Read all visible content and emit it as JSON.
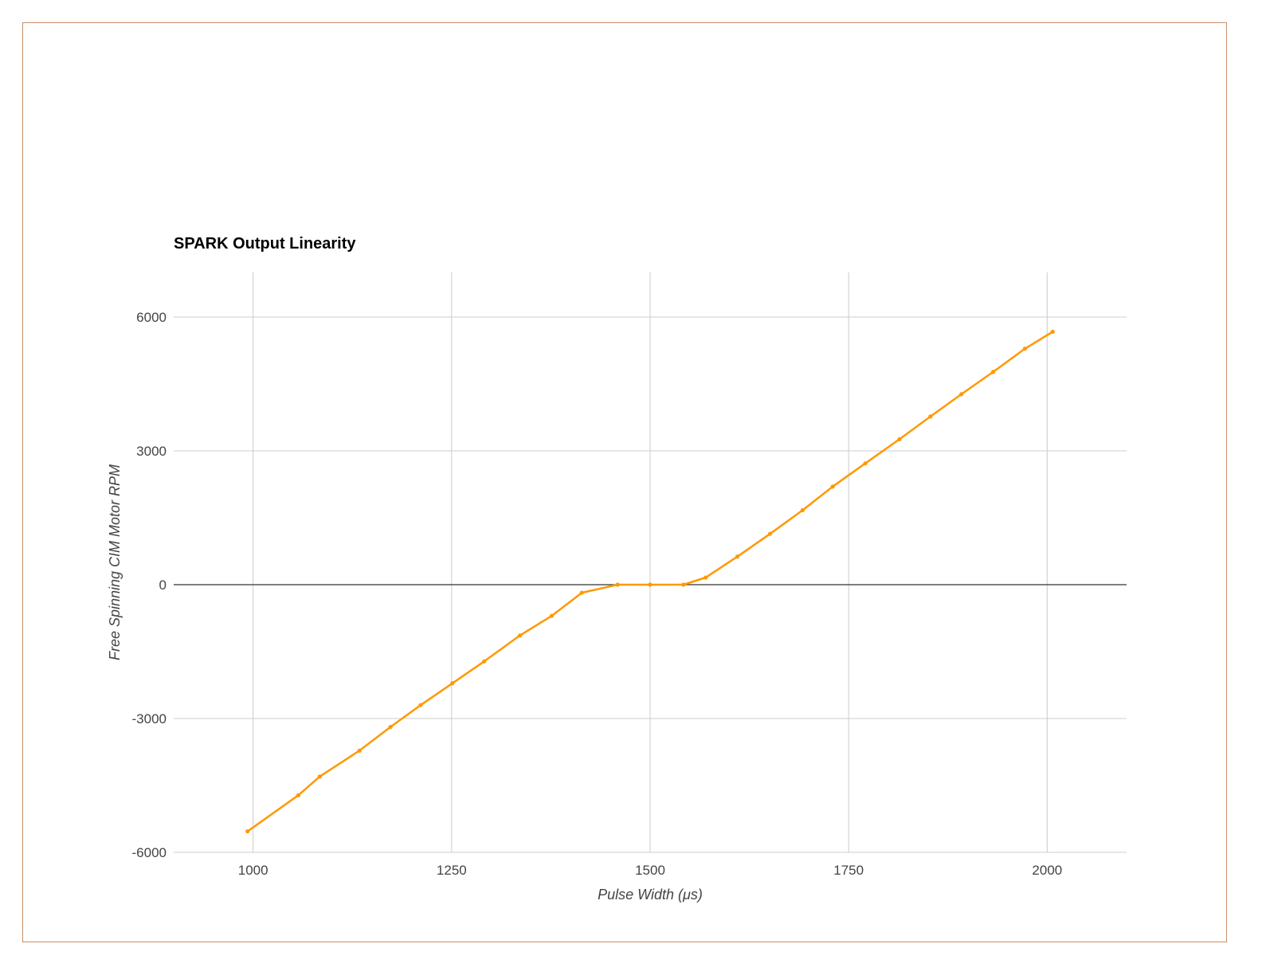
{
  "chart_data": {
    "type": "line",
    "title": "SPARK Output Linearity",
    "xlabel": "Pulse Width (μs)",
    "ylabel": "Free Spinning CIM Motor RPM",
    "xlim": [
      900,
      2100
    ],
    "ylim": [
      -6000,
      7000
    ],
    "xticks": [
      1000,
      1250,
      1500,
      1750,
      2000
    ],
    "yticks": [
      -6000,
      -3000,
      0,
      3000,
      6000
    ],
    "grid": true,
    "legend": "none",
    "series": [
      {
        "color": "#ff9900",
        "x": [
          993,
          1057,
          1084,
          1134,
          1173,
          1211,
          1251,
          1291,
          1336,
          1376,
          1414,
          1459,
          1500,
          1542,
          1570,
          1610,
          1651,
          1692,
          1730,
          1771,
          1814,
          1853,
          1892,
          1932,
          1972,
          2007
        ],
        "y": [
          -5530,
          -4720,
          -4300,
          -3720,
          -3190,
          -2700,
          -2210,
          -1720,
          -1140,
          -700,
          -180,
          0,
          0,
          0,
          160,
          630,
          1140,
          1670,
          2200,
          2720,
          3260,
          3770,
          4270,
          4770,
          5290,
          5670
        ]
      }
    ]
  }
}
